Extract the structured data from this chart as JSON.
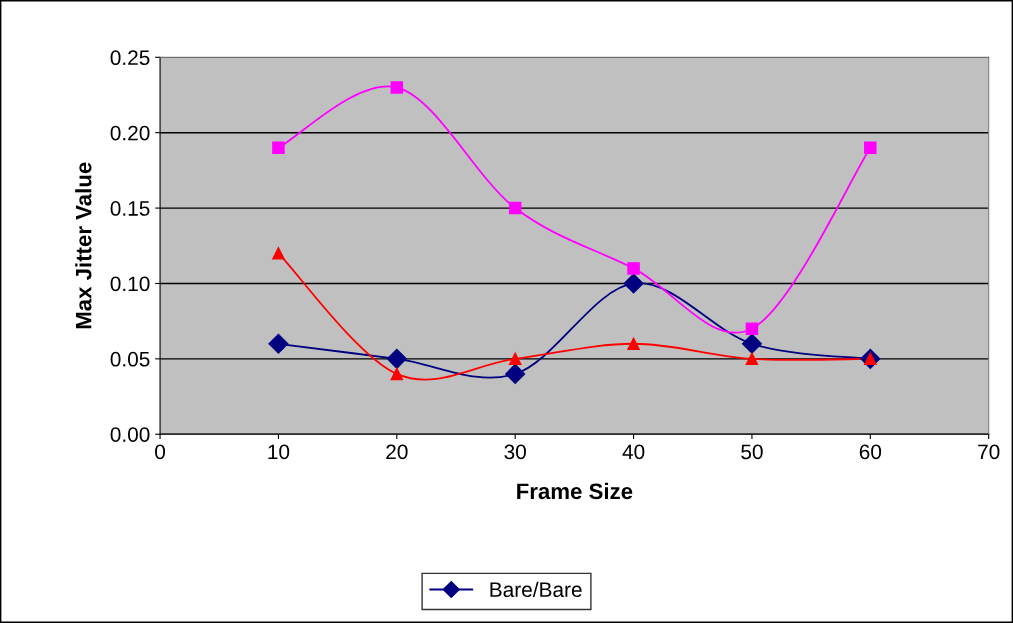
{
  "chart_data": {
    "type": "line",
    "xlabel": "Frame Size",
    "ylabel": "Max Jitter Value",
    "x": [
      10,
      20,
      30,
      40,
      50,
      60
    ],
    "series": [
      {
        "name": "Bare/Bare",
        "color": "#000080",
        "marker": "diamond",
        "values": [
          0.06,
          0.05,
          0.04,
          0.1,
          0.06,
          0.05
        ]
      },
      {
        "color": "#ff00ff",
        "marker": "square",
        "values": [
          0.19,
          0.23,
          0.15,
          0.11,
          0.07,
          0.19
        ]
      },
      {
        "color": "#ff0000",
        "marker": "triangle",
        "values": [
          0.12,
          0.04,
          0.05,
          0.06,
          0.05,
          0.05
        ]
      }
    ],
    "xlim": [
      0,
      70
    ],
    "xticks": [
      0,
      10,
      20,
      30,
      40,
      50,
      60,
      70
    ],
    "ylim": [
      0,
      0.25
    ],
    "yticks": [
      {
        "value": 0,
        "label": "0.00"
      },
      {
        "value": 0.05,
        "label": "0.05"
      },
      {
        "value": 0.1,
        "label": "0.10"
      },
      {
        "value": 0.15,
        "label": "0.15"
      },
      {
        "value": 0.2,
        "label": "0.20"
      },
      {
        "value": 0.25,
        "label": "0.25"
      }
    ],
    "grid": "y",
    "legend": "bottom",
    "line_style": "solid"
  }
}
